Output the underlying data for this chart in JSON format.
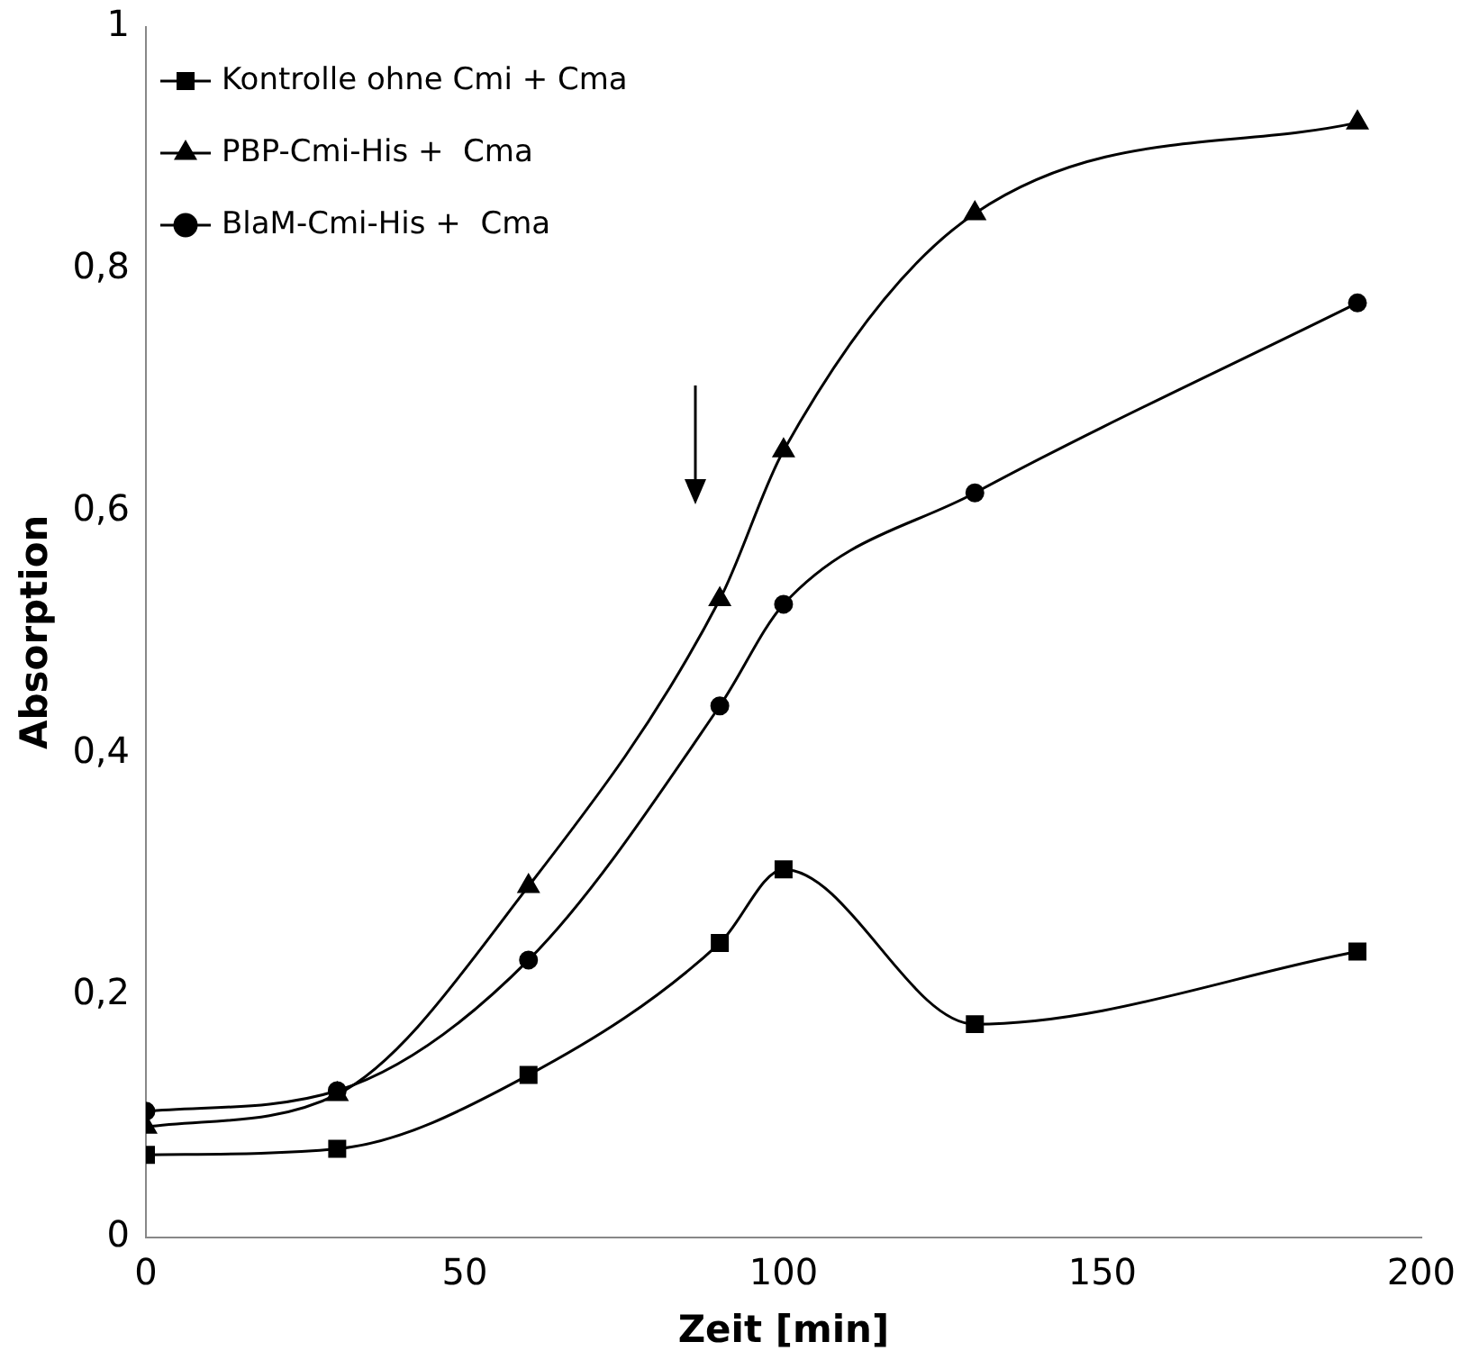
{
  "chart_data": {
    "type": "line",
    "xlabel": "Zeit [min]",
    "ylabel": "Absorption",
    "x": [
      0,
      30,
      60,
      90,
      100,
      130,
      190
    ],
    "series": [
      {
        "name": "Kontrolle ohne Cmi + Cma",
        "color": "#000000",
        "marker": "square",
        "values": [
          0.068,
          0.073,
          0.134,
          0.243,
          0.304,
          0.176,
          0.236
        ]
      },
      {
        "name": "PBP-Cmi-His +  Cma",
        "color": "#000000",
        "marker": "triangle",
        "values": [
          0.091,
          0.118,
          0.29,
          0.527,
          0.65,
          0.846,
          0.921
        ]
      },
      {
        "name": "BlaM-Cmi-His +  Cma",
        "color": "#000000",
        "marker": "circle",
        "values": [
          0.104,
          0.121,
          0.229,
          0.439,
          0.523,
          0.615,
          0.772
        ]
      }
    ],
    "xlim": [
      0,
      200
    ],
    "xticks": [
      0,
      50,
      100,
      150,
      200
    ],
    "ylim": [
      0,
      1
    ],
    "yticks": [
      0,
      {
        "value": 0.2,
        "label": "0,2"
      },
      {
        "value": 0.4,
        "label": "0,4"
      },
      {
        "value": 0.6,
        "label": "0,6"
      },
      {
        "value": 0.8,
        "label": "0,8"
      },
      1
    ],
    "grid": false,
    "legend": "top left",
    "line_style": "solid"
  }
}
